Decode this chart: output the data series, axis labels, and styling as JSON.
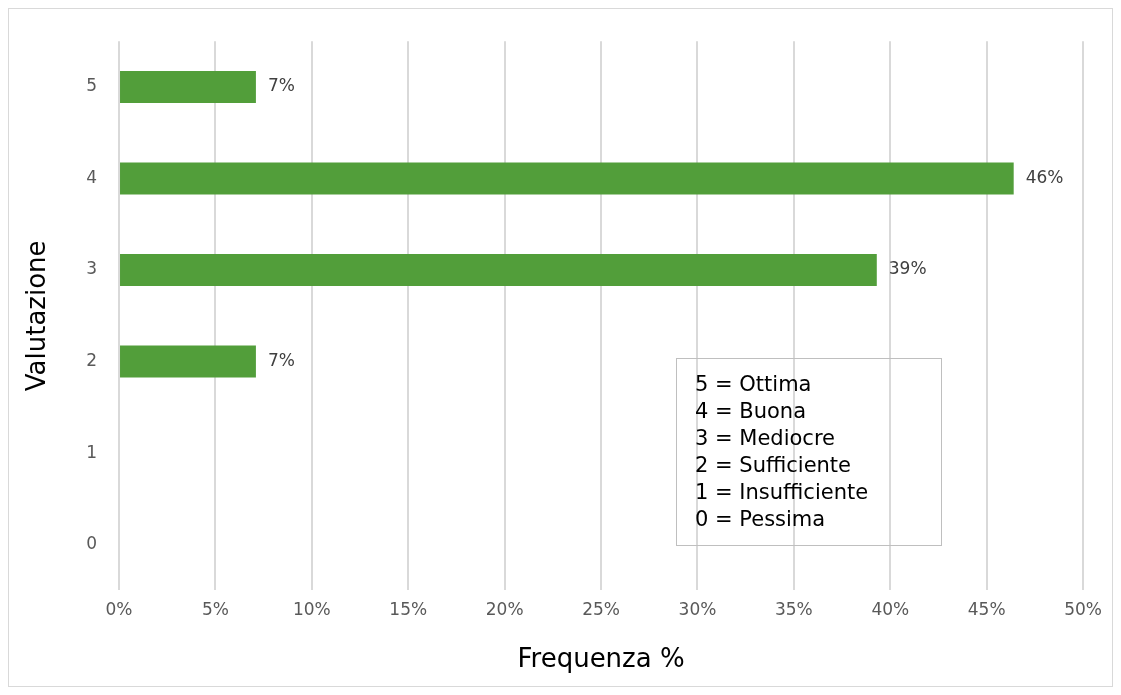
{
  "chart_data": {
    "type": "bar",
    "orientation": "horizontal",
    "xlabel": "Frequenza %",
    "ylabel": "Valutazione",
    "categories": [
      "5",
      "4",
      "3",
      "2",
      "1",
      "0"
    ],
    "values": [
      7.1,
      46.4,
      39.3,
      7.1,
      null,
      null
    ],
    "value_labels": [
      "7%",
      "46%",
      "39%",
      "7%",
      null,
      null
    ],
    "color": "#529e3a",
    "xlim": [
      0,
      50
    ],
    "xticks": [
      {
        "value": 0,
        "label": "0%"
      },
      {
        "value": 5,
        "label": "5%"
      },
      {
        "value": 10,
        "label": "10%"
      },
      {
        "value": 15,
        "label": "15%"
      },
      {
        "value": 20,
        "label": "20%"
      },
      {
        "value": 25,
        "label": "25%"
      },
      {
        "value": 30,
        "label": "30%"
      },
      {
        "value": 35,
        "label": "35%"
      },
      {
        "value": 40,
        "label": "40%"
      },
      {
        "value": 45,
        "label": "45%"
      },
      {
        "value": 50,
        "label": "50%"
      }
    ],
    "grid": "x",
    "legend": false,
    "annotations": [
      "5 = Ottima",
      "4 = Buona",
      "3 = Mediocre",
      "2 = Sufficiente",
      "1 = Insufficiente",
      "0 = Pessima"
    ]
  }
}
